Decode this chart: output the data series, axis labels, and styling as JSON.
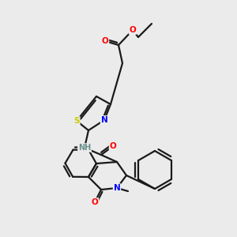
{
  "bg_color": "#ebebeb",
  "bond_color": "#1a1a1a",
  "atom_colors": {
    "N": "#0000ff",
    "O": "#ff0000",
    "S": "#cccc00",
    "C": "#1a1a1a",
    "H": "#6b8e8e"
  },
  "figsize": [
    3.0,
    3.0
  ],
  "dpi": 100,
  "lw": 1.6,
  "fs": 7.5
}
